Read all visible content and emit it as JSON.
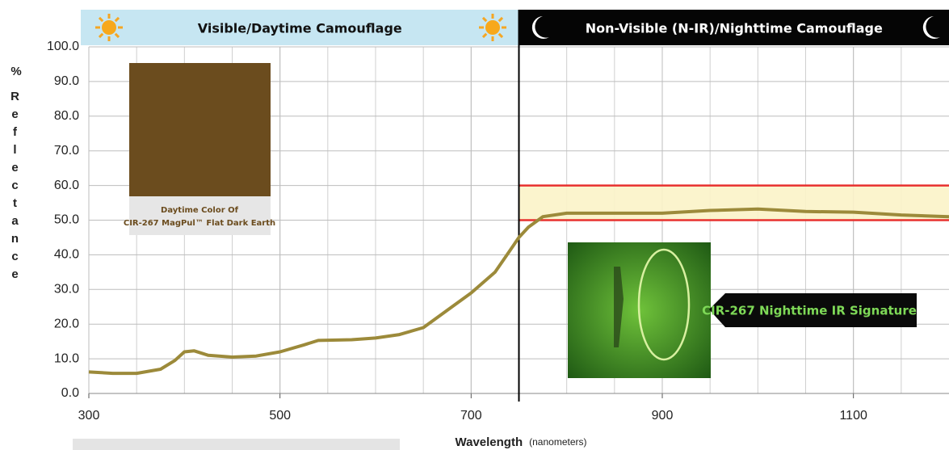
{
  "chart_data": {
    "type": "line",
    "banners": [
      {
        "text": "Visible/Daytime Camouflage",
        "color": "#c6e6f2",
        "text_color": "#111111"
      },
      {
        "text": "Non-Visible (N-IR)/Nighttime Camouflage",
        "color": "#050505",
        "text_color": "#ffffff"
      }
    ],
    "boundary": 750,
    "x": [
      300,
      325,
      350,
      375,
      390,
      400,
      410,
      425,
      450,
      475,
      500,
      525,
      540,
      575,
      600,
      625,
      650,
      675,
      700,
      725,
      740,
      750,
      760,
      775,
      800,
      850,
      900,
      950,
      1000,
      1050,
      1100,
      1150,
      1200
    ],
    "values": [
      6.2,
      5.8,
      5.8,
      7,
      9.5,
      12,
      12.3,
      11,
      10.5,
      10.8,
      12,
      14,
      15.3,
      15.5,
      16,
      17,
      19,
      24,
      29,
      35,
      41,
      45,
      48,
      51,
      52,
      52,
      52,
      52.8,
      53.2,
      52.5,
      52.3,
      51.5,
      51
    ],
    "color": "#9c8a3a",
    "xlim": [
      300,
      1200
    ],
    "xticks": [
      300,
      500,
      700,
      900,
      1100
    ],
    "xgrid": [
      350,
      400,
      450,
      500,
      550,
      600,
      650,
      700,
      800,
      850,
      900,
      950,
      1000,
      1050,
      1100,
      1150
    ],
    "ylim": [
      0,
      100
    ],
    "yticks": [
      {
        "value": 0,
        "label": "0.0"
      },
      {
        "value": 10,
        "label": "10.0"
      },
      {
        "value": 20,
        "label": "20.0"
      },
      {
        "value": 30,
        "label": "30.0"
      },
      {
        "value": 40,
        "label": "40.0"
      },
      {
        "value": 50,
        "label": "50.0"
      },
      {
        "value": 60,
        "label": "60.0"
      },
      {
        "value": 70,
        "label": "70.0"
      },
      {
        "value": 80,
        "label": "80.0"
      },
      {
        "value": 90,
        "label": "90.0"
      },
      {
        "value": 100,
        "label": "100.0"
      }
    ],
    "grid": true,
    "x_label": "Wavelength",
    "x_unit": "(nanometers)",
    "y_symbol": "%",
    "y_label": "Reflectance",
    "ir_band": {
      "lower": 50,
      "upper": 60,
      "line_color": "#e8312f",
      "fill": "#fbf3c8"
    },
    "swatch": {
      "color": "#6b4c1e",
      "caption": [
        "Daytime Color Of",
        "CIR-267 MagPul™ Flat Dark Earth"
      ]
    },
    "callout": "CIR-267 Nighttime IR Signature"
  }
}
